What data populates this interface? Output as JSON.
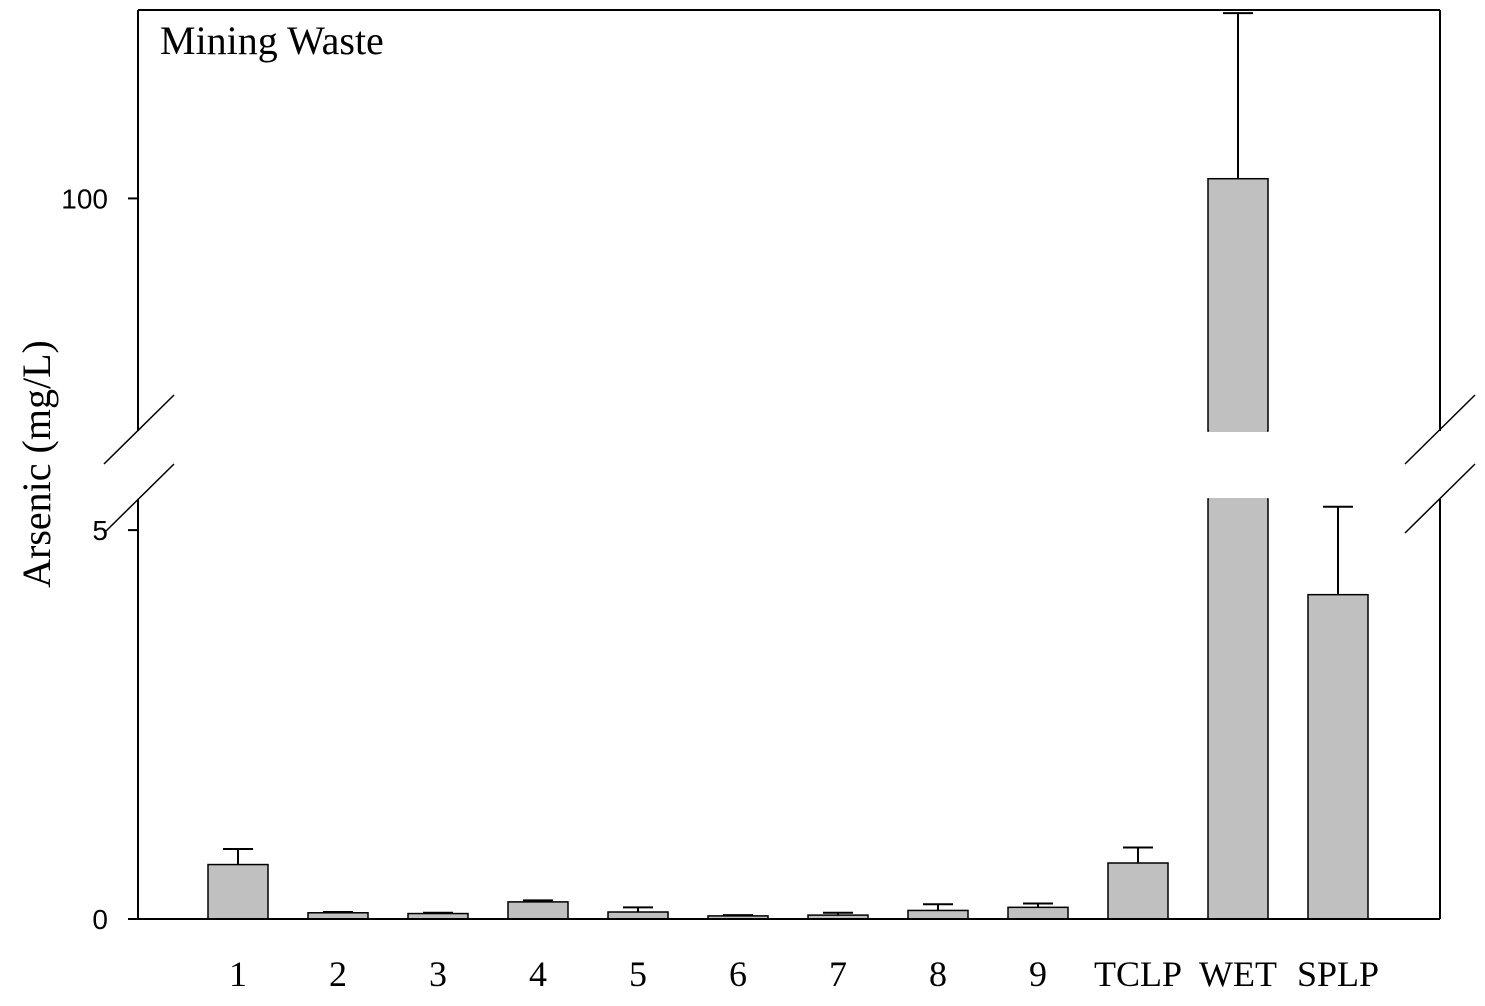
{
  "chart_data": {
    "type": "bar",
    "title": "Mining Waste",
    "xlabel": "",
    "ylabel": "Arsenic (mg/L)",
    "categories": [
      "1",
      "2",
      "3",
      "4",
      "5",
      "6",
      "7",
      "8",
      "9",
      "TCLP",
      "WET",
      "SPLP"
    ],
    "values": [
      0.7,
      0.08,
      0.07,
      0.22,
      0.09,
      0.04,
      0.05,
      0.11,
      0.15,
      0.72,
      102.5,
      4.17
    ],
    "error_plus": [
      0.2,
      0.01,
      0.01,
      0.02,
      0.06,
      0.01,
      0.03,
      0.08,
      0.05,
      0.2,
      21.0,
      1.13
    ],
    "y_axis_break": {
      "lower_segment": [
        0,
        5.4
      ],
      "upper_segment": [
        70.5,
        123.9
      ]
    },
    "yticks": [
      0,
      5,
      100
    ],
    "bar_color": "#c0c0c0",
    "grid": false,
    "legend": "none"
  }
}
